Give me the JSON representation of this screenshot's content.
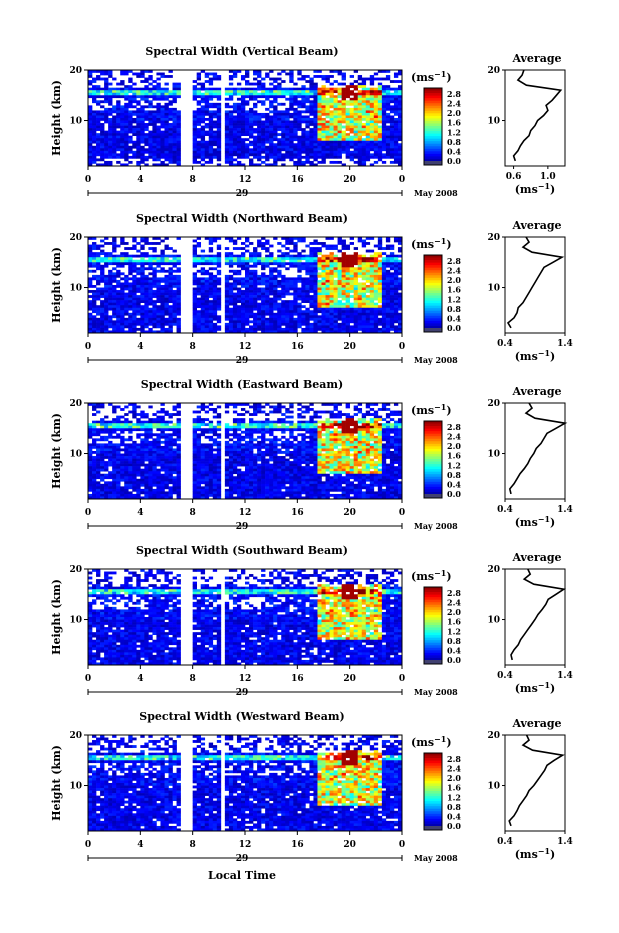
{
  "figure": {
    "xlabel": "Local Time",
    "date_label": "May 2008",
    "day_label": "29",
    "ylabel": "Height (km)",
    "colorbar_unit": "(ms",
    "colorbar_unit_sup": "−1",
    "colorbar_unit_close": ")",
    "average_title": "Average",
    "average_xlabel": "(ms",
    "average_xlabel_sup": "−1",
    "average_xlabel_close": ")"
  },
  "chart_data": [
    {
      "type": "heatmap",
      "title": "Spectral Width (Vertical Beam)",
      "x_ticks": [
        "0",
        "4",
        "8",
        "12",
        "16",
        "20",
        "0"
      ],
      "y_ticks": [
        "20",
        "10"
      ],
      "colorbar_ticks": [
        "2.8",
        "2.4",
        "2.0",
        "1.6",
        "1.2",
        "0.8",
        "0.4",
        "0.0"
      ],
      "xlim": [
        0,
        24
      ],
      "ylim": [
        1,
        20
      ],
      "clim": [
        0.0,
        3.0
      ],
      "data_gaps_hours": [
        [
          7.1,
          7.9
        ],
        [
          10.2,
          10.6
        ]
      ],
      "average_profile": {
        "x_ticks": [
          "0.6",
          "1.0"
        ],
        "xlim": [
          0.5,
          1.2
        ],
        "height_km": [
          2,
          3,
          4,
          5,
          6,
          7,
          8,
          9,
          10,
          11,
          12,
          13,
          14,
          15,
          16,
          17,
          18,
          19,
          20
        ],
        "width_ms": [
          0.62,
          0.6,
          0.65,
          0.68,
          0.72,
          0.78,
          0.8,
          0.85,
          0.88,
          0.95,
          1.0,
          0.98,
          1.05,
          1.1,
          1.15,
          0.75,
          0.65,
          0.7,
          0.72
        ]
      }
    },
    {
      "type": "heatmap",
      "title": "Spectral Width (Northward Beam)",
      "x_ticks": [
        "0",
        "4",
        "8",
        "12",
        "16",
        "20",
        "0"
      ],
      "y_ticks": [
        "20",
        "10"
      ],
      "colorbar_ticks": [
        "2.8",
        "2.4",
        "2.0",
        "1.6",
        "1.2",
        "0.8",
        "0.4",
        "0.0"
      ],
      "xlim": [
        0,
        24
      ],
      "ylim": [
        1,
        20
      ],
      "clim": [
        0.0,
        3.0
      ],
      "data_gaps_hours": [
        [
          7.1,
          7.9
        ],
        [
          10.2,
          10.6
        ]
      ],
      "average_profile": {
        "x_ticks": [
          "0.4",
          "1.4"
        ],
        "xlim": [
          0.4,
          1.4
        ],
        "height_km": [
          2,
          3,
          4,
          5,
          6,
          7,
          8,
          9,
          10,
          11,
          12,
          13,
          14,
          15,
          16,
          17,
          18,
          19,
          20
        ],
        "width_ms": [
          0.5,
          0.45,
          0.55,
          0.6,
          0.62,
          0.7,
          0.75,
          0.8,
          0.85,
          0.9,
          0.95,
          1.0,
          1.05,
          1.2,
          1.35,
          0.85,
          0.7,
          0.8,
          0.75
        ]
      }
    },
    {
      "type": "heatmap",
      "title": "Spectral Width (Eastward Beam)",
      "x_ticks": [
        "0",
        "4",
        "8",
        "12",
        "16",
        "20",
        "0"
      ],
      "y_ticks": [
        "20",
        "10"
      ],
      "colorbar_ticks": [
        "2.8",
        "2.4",
        "2.0",
        "1.6",
        "1.2",
        "0.8",
        "0.4",
        "0.0"
      ],
      "xlim": [
        0,
        24
      ],
      "ylim": [
        1,
        20
      ],
      "clim": [
        0.0,
        3.0
      ],
      "data_gaps_hours": [
        [
          7.1,
          7.9
        ],
        [
          10.2,
          10.6
        ]
      ],
      "average_profile": {
        "x_ticks": [
          "0.4",
          "1.4"
        ],
        "xlim": [
          0.4,
          1.4
        ],
        "height_km": [
          2,
          3,
          4,
          5,
          6,
          7,
          8,
          9,
          10,
          11,
          12,
          13,
          14,
          15,
          16,
          17,
          18,
          19,
          20
        ],
        "width_ms": [
          0.5,
          0.48,
          0.55,
          0.6,
          0.65,
          0.72,
          0.78,
          0.82,
          0.88,
          0.92,
          1.0,
          1.05,
          1.1,
          1.25,
          1.4,
          0.9,
          0.75,
          0.85,
          0.8
        ]
      }
    },
    {
      "type": "heatmap",
      "title": "Spectral Width (Southward Beam)",
      "x_ticks": [
        "0",
        "4",
        "8",
        "12",
        "16",
        "20",
        "0"
      ],
      "y_ticks": [
        "20",
        "10"
      ],
      "colorbar_ticks": [
        "2.8",
        "2.4",
        "2.0",
        "1.6",
        "1.2",
        "0.8",
        "0.4",
        "0.0"
      ],
      "xlim": [
        0,
        24
      ],
      "ylim": [
        1,
        20
      ],
      "clim": [
        0.0,
        3.0
      ],
      "data_gaps_hours": [
        [
          7.1,
          7.9
        ],
        [
          10.2,
          10.6
        ]
      ],
      "average_profile": {
        "x_ticks": [
          "0.4",
          "1.4"
        ],
        "xlim": [
          0.4,
          1.4
        ],
        "height_km": [
          2,
          3,
          4,
          5,
          6,
          7,
          8,
          9,
          10,
          11,
          12,
          13,
          14,
          15,
          16,
          17,
          18,
          19,
          20
        ],
        "width_ms": [
          0.52,
          0.5,
          0.55,
          0.62,
          0.66,
          0.72,
          0.78,
          0.84,
          0.9,
          0.95,
          1.02,
          1.08,
          1.12,
          1.25,
          1.38,
          0.88,
          0.72,
          0.82,
          0.78
        ]
      }
    },
    {
      "type": "heatmap",
      "title": "Spectral Width (Westward Beam)",
      "x_ticks": [
        "0",
        "4",
        "8",
        "12",
        "16",
        "20",
        "0"
      ],
      "y_ticks": [
        "20",
        "10"
      ],
      "colorbar_ticks": [
        "2.8",
        "2.4",
        "2.0",
        "1.6",
        "1.2",
        "0.8",
        "0.4",
        "0.0"
      ],
      "xlim": [
        0,
        24
      ],
      "ylim": [
        1,
        20
      ],
      "clim": [
        0.0,
        3.0
      ],
      "data_gaps_hours": [
        [
          7.1,
          7.9
        ],
        [
          10.2,
          10.6
        ]
      ],
      "average_profile": {
        "x_ticks": [
          "0.4",
          "1.4"
        ],
        "xlim": [
          0.4,
          1.4
        ],
        "height_km": [
          2,
          3,
          4,
          5,
          6,
          7,
          8,
          9,
          10,
          11,
          12,
          13,
          14,
          15,
          16,
          17,
          18,
          19,
          20
        ],
        "width_ms": [
          0.5,
          0.47,
          0.55,
          0.6,
          0.64,
          0.7,
          0.76,
          0.8,
          0.88,
          0.94,
          1.0,
          1.06,
          1.1,
          1.22,
          1.36,
          0.86,
          0.7,
          0.8,
          0.76
        ]
      }
    }
  ]
}
